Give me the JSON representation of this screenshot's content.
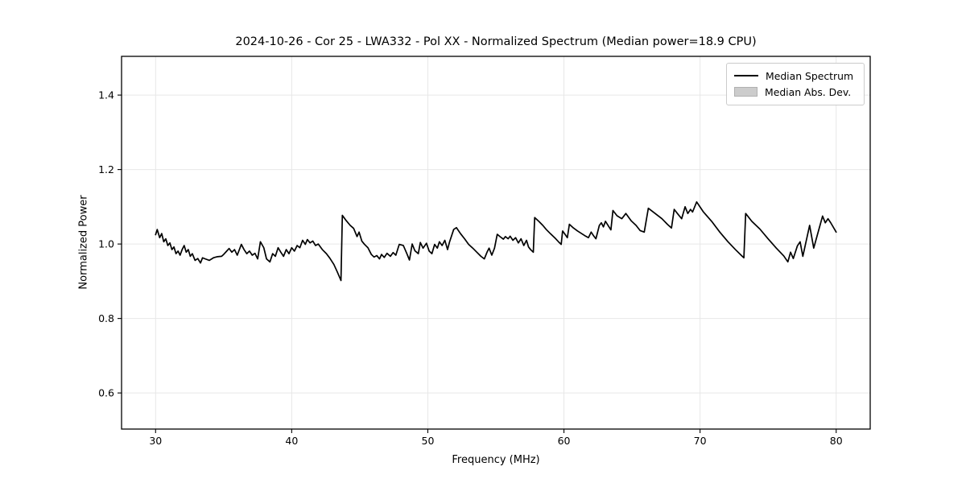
{
  "chart_data": {
    "type": "line",
    "title": "2024-10-26 - Cor 25 - LWA332 - Pol XX - Normalized Spectrum (Median power=18.9 CPU)",
    "xlabel": "Frequency (MHz)",
    "ylabel": "Normalized Power",
    "xlim": [
      27.5,
      82.5
    ],
    "ylim": [
      0.503,
      1.504
    ],
    "xticks": [
      30,
      40,
      50,
      60,
      70,
      80
    ],
    "yticks": [
      0.6,
      0.8,
      1.0,
      1.2,
      1.4
    ],
    "grid": true,
    "grid_color": "#e7e7e7",
    "axis_color": "#000000",
    "background_color": "#ffffff",
    "legend": {
      "position": "upper right",
      "entries": [
        {
          "label": "Median Spectrum",
          "type": "line",
          "color": "#000000"
        },
        {
          "label": "Median Abs. Dev.",
          "type": "patch",
          "color": "#cccccc"
        }
      ]
    },
    "series": [
      {
        "name": "Median Spectrum",
        "color": "#000000",
        "points": [
          [
            30.0,
            1.025
          ],
          [
            30.12,
            1.039
          ],
          [
            30.3,
            1.017
          ],
          [
            30.45,
            1.028
          ],
          [
            30.6,
            1.006
          ],
          [
            30.75,
            1.014
          ],
          [
            30.9,
            0.996
          ],
          [
            31.05,
            1.003
          ],
          [
            31.2,
            0.985
          ],
          [
            31.35,
            0.992
          ],
          [
            31.5,
            0.974
          ],
          [
            31.65,
            0.981
          ],
          [
            31.8,
            0.97
          ],
          [
            31.95,
            0.985
          ],
          [
            32.1,
            0.996
          ],
          [
            32.25,
            0.978
          ],
          [
            32.4,
            0.985
          ],
          [
            32.55,
            0.967
          ],
          [
            32.7,
            0.974
          ],
          [
            32.9,
            0.956
          ],
          [
            33.1,
            0.961
          ],
          [
            33.3,
            0.949
          ],
          [
            33.45,
            0.963
          ],
          [
            33.65,
            0.96
          ],
          [
            33.95,
            0.956
          ],
          [
            34.25,
            0.963
          ],
          [
            34.55,
            0.966
          ],
          [
            34.85,
            0.967
          ],
          [
            35.0,
            0.972
          ],
          [
            35.2,
            0.98
          ],
          [
            35.4,
            0.988
          ],
          [
            35.6,
            0.978
          ],
          [
            35.8,
            0.985
          ],
          [
            36.0,
            0.97
          ],
          [
            36.3,
            0.999
          ],
          [
            36.5,
            0.985
          ],
          [
            36.7,
            0.974
          ],
          [
            36.9,
            0.981
          ],
          [
            37.1,
            0.97
          ],
          [
            37.3,
            0.975
          ],
          [
            37.5,
            0.96
          ],
          [
            37.7,
            1.006
          ],
          [
            37.95,
            0.99
          ],
          [
            38.15,
            0.96
          ],
          [
            38.4,
            0.952
          ],
          [
            38.6,
            0.974
          ],
          [
            38.8,
            0.967
          ],
          [
            39.0,
            0.99
          ],
          [
            39.2,
            0.978
          ],
          [
            39.4,
            0.967
          ],
          [
            39.6,
            0.985
          ],
          [
            39.8,
            0.974
          ],
          [
            40.0,
            0.99
          ],
          [
            40.2,
            0.981
          ],
          [
            40.4,
            0.996
          ],
          [
            40.6,
            0.99
          ],
          [
            40.8,
            1.01
          ],
          [
            41.0,
            0.999
          ],
          [
            41.15,
            1.012
          ],
          [
            41.35,
            1.003
          ],
          [
            41.55,
            1.008
          ],
          [
            41.75,
            0.996
          ],
          [
            41.95,
            1.0
          ],
          [
            42.25,
            0.985
          ],
          [
            42.55,
            0.974
          ],
          [
            42.8,
            0.962
          ],
          [
            43.1,
            0.945
          ],
          [
            43.35,
            0.925
          ],
          [
            43.62,
            0.902
          ],
          [
            43.72,
            1.077
          ],
          [
            44.0,
            1.063
          ],
          [
            44.3,
            1.05
          ],
          [
            44.55,
            1.042
          ],
          [
            44.8,
            1.02
          ],
          [
            44.95,
            1.032
          ],
          [
            45.15,
            1.008
          ],
          [
            45.35,
            0.999
          ],
          [
            45.6,
            0.99
          ],
          [
            45.85,
            0.972
          ],
          [
            46.05,
            0.965
          ],
          [
            46.25,
            0.969
          ],
          [
            46.45,
            0.96
          ],
          [
            46.6,
            0.972
          ],
          [
            46.8,
            0.964
          ],
          [
            47.0,
            0.975
          ],
          [
            47.25,
            0.967
          ],
          [
            47.45,
            0.977
          ],
          [
            47.65,
            0.97
          ],
          [
            47.9,
            0.999
          ],
          [
            48.2,
            0.996
          ],
          [
            48.45,
            0.975
          ],
          [
            48.65,
            0.957
          ],
          [
            48.85,
            1.0
          ],
          [
            49.05,
            0.982
          ],
          [
            49.3,
            0.974
          ],
          [
            49.45,
            1.004
          ],
          [
            49.65,
            0.989
          ],
          [
            49.9,
            1.002
          ],
          [
            50.1,
            0.981
          ],
          [
            50.3,
            0.974
          ],
          [
            50.5,
            0.999
          ],
          [
            50.7,
            0.989
          ],
          [
            50.85,
            1.006
          ],
          [
            51.05,
            0.996
          ],
          [
            51.25,
            1.01
          ],
          [
            51.45,
            0.985
          ],
          [
            51.6,
            1.006
          ],
          [
            51.9,
            1.039
          ],
          [
            52.1,
            1.044
          ],
          [
            52.4,
            1.028
          ],
          [
            52.7,
            1.014
          ],
          [
            53.0,
            0.999
          ],
          [
            53.3,
            0.989
          ],
          [
            53.6,
            0.978
          ],
          [
            53.9,
            0.967
          ],
          [
            54.15,
            0.96
          ],
          [
            54.35,
            0.978
          ],
          [
            54.5,
            0.989
          ],
          [
            54.7,
            0.97
          ],
          [
            54.9,
            0.989
          ],
          [
            55.1,
            1.026
          ],
          [
            55.3,
            1.02
          ],
          [
            55.55,
            1.013
          ],
          [
            55.7,
            1.02
          ],
          [
            55.9,
            1.014
          ],
          [
            56.05,
            1.021
          ],
          [
            56.25,
            1.01
          ],
          [
            56.45,
            1.017
          ],
          [
            56.65,
            1.003
          ],
          [
            56.85,
            1.014
          ],
          [
            57.05,
            0.996
          ],
          [
            57.25,
            1.01
          ],
          [
            57.4,
            0.992
          ],
          [
            57.55,
            0.985
          ],
          [
            57.75,
            0.978
          ],
          [
            57.85,
            1.071
          ],
          [
            58.15,
            1.061
          ],
          [
            58.45,
            1.05
          ],
          [
            58.7,
            1.039
          ],
          [
            59.0,
            1.028
          ],
          [
            59.2,
            1.021
          ],
          [
            59.4,
            1.014
          ],
          [
            59.6,
            1.006
          ],
          [
            59.8,
            0.999
          ],
          [
            59.9,
            1.035
          ],
          [
            60.1,
            1.025
          ],
          [
            60.25,
            1.017
          ],
          [
            60.4,
            1.053
          ],
          [
            60.7,
            1.043
          ],
          [
            61.0,
            1.035
          ],
          [
            61.3,
            1.028
          ],
          [
            61.6,
            1.021
          ],
          [
            61.8,
            1.017
          ],
          [
            62.0,
            1.032
          ],
          [
            62.2,
            1.021
          ],
          [
            62.35,
            1.014
          ],
          [
            62.6,
            1.05
          ],
          [
            62.75,
            1.057
          ],
          [
            62.9,
            1.046
          ],
          [
            63.05,
            1.061
          ],
          [
            63.45,
            1.038
          ],
          [
            63.6,
            1.09
          ],
          [
            63.9,
            1.076
          ],
          [
            64.25,
            1.068
          ],
          [
            64.55,
            1.082
          ],
          [
            64.95,
            1.062
          ],
          [
            65.3,
            1.05
          ],
          [
            65.6,
            1.036
          ],
          [
            65.9,
            1.032
          ],
          [
            66.2,
            1.096
          ],
          [
            66.7,
            1.082
          ],
          [
            67.2,
            1.068
          ],
          [
            67.6,
            1.053
          ],
          [
            67.9,
            1.043
          ],
          [
            68.1,
            1.093
          ],
          [
            68.4,
            1.079
          ],
          [
            68.65,
            1.068
          ],
          [
            68.9,
            1.1
          ],
          [
            69.1,
            1.082
          ],
          [
            69.3,
            1.093
          ],
          [
            69.45,
            1.086
          ],
          [
            69.75,
            1.113
          ],
          [
            70.25,
            1.086
          ],
          [
            70.85,
            1.061
          ],
          [
            71.45,
            1.032
          ],
          [
            72.05,
            1.006
          ],
          [
            72.6,
            0.985
          ],
          [
            73.1,
            0.967
          ],
          [
            73.22,
            0.963
          ],
          [
            73.35,
            1.082
          ],
          [
            73.8,
            1.061
          ],
          [
            74.4,
            1.04
          ],
          [
            75.0,
            1.014
          ],
          [
            75.6,
            0.989
          ],
          [
            76.15,
            0.968
          ],
          [
            76.45,
            0.952
          ],
          [
            76.65,
            0.978
          ],
          [
            76.85,
            0.961
          ],
          [
            77.15,
            0.995
          ],
          [
            77.35,
            1.006
          ],
          [
            77.55,
            0.967
          ],
          [
            78.05,
            1.05
          ],
          [
            78.35,
            0.989
          ],
          [
            79.0,
            1.075
          ],
          [
            79.2,
            1.057
          ],
          [
            79.4,
            1.068
          ],
          [
            79.6,
            1.057
          ],
          [
            80.0,
            1.032
          ]
        ]
      }
    ]
  }
}
